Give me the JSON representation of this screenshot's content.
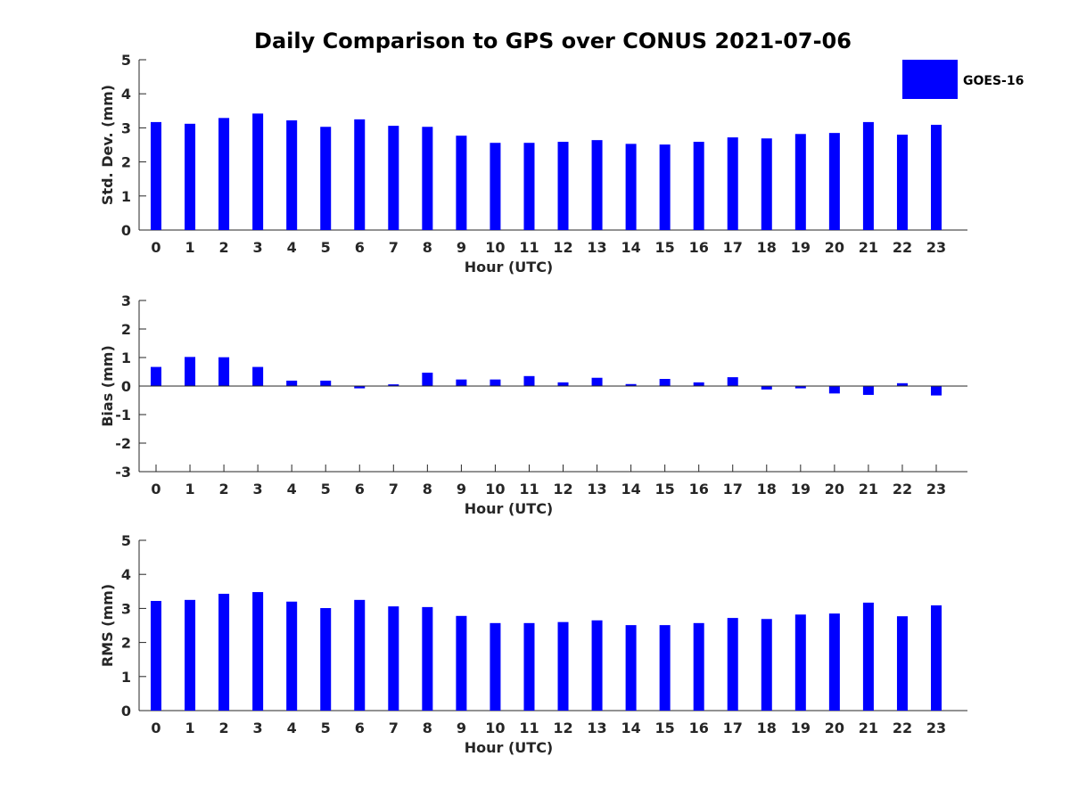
{
  "chart_data": {
    "type": "bar",
    "title": "Daily Comparison to GPS over CONUS 2021-07-06",
    "legend": {
      "placement": "top-right",
      "entries": [
        {
          "name": "GOES-16",
          "color": "#0000ff"
        }
      ]
    },
    "categories": [
      "0",
      "1",
      "2",
      "3",
      "4",
      "5",
      "6",
      "7",
      "8",
      "9",
      "10",
      "11",
      "12",
      "13",
      "14",
      "15",
      "16",
      "17",
      "18",
      "19",
      "20",
      "21",
      "22",
      "23"
    ],
    "panels": [
      {
        "id": "stddev",
        "ylabel": "Std. Dev. (mm)",
        "xlabel": "Hour (UTC)",
        "ylim": [
          0,
          5
        ],
        "yticks": [
          "0",
          "1",
          "2",
          "3",
          "4",
          "5"
        ],
        "series": [
          {
            "name": "GOES-16",
            "values": [
              3.17,
              3.12,
              3.29,
              3.42,
              3.22,
              3.03,
              3.25,
              3.06,
              3.03,
              2.77,
              2.56,
              2.56,
              2.59,
              2.64,
              2.53,
              2.51,
              2.59,
              2.72,
              2.69,
              2.82,
              2.85,
              3.17,
              2.8,
              3.09
            ]
          }
        ]
      },
      {
        "id": "bias",
        "ylabel": "Bias (mm)",
        "xlabel": "Hour (UTC)",
        "ylim": [
          -3,
          3
        ],
        "yticks": [
          "-3",
          "-2",
          "-1",
          "0",
          "1",
          "2",
          "3"
        ],
        "series": [
          {
            "name": "GOES-16",
            "values": [
              0.67,
              1.02,
              1.01,
              0.67,
              0.19,
              0.19,
              -0.08,
              0.06,
              0.47,
              0.23,
              0.23,
              0.35,
              0.13,
              0.29,
              0.07,
              0.25,
              0.13,
              0.31,
              -0.12,
              -0.08,
              -0.26,
              -0.31,
              0.1,
              -0.33
            ]
          }
        ]
      },
      {
        "id": "rms",
        "ylabel": "RMS (mm)",
        "xlabel": "Hour (UTC)",
        "ylim": [
          0,
          5
        ],
        "yticks": [
          "0",
          "1",
          "2",
          "3",
          "4",
          "5"
        ],
        "series": [
          {
            "name": "GOES-16",
            "values": [
              3.22,
              3.25,
              3.43,
              3.48,
              3.2,
              3.01,
              3.25,
              3.06,
              3.04,
              2.78,
              2.57,
              2.57,
              2.6,
              2.65,
              2.51,
              2.51,
              2.57,
              2.72,
              2.69,
              2.82,
              2.85,
              3.17,
              2.77,
              3.09
            ]
          }
        ]
      }
    ]
  }
}
